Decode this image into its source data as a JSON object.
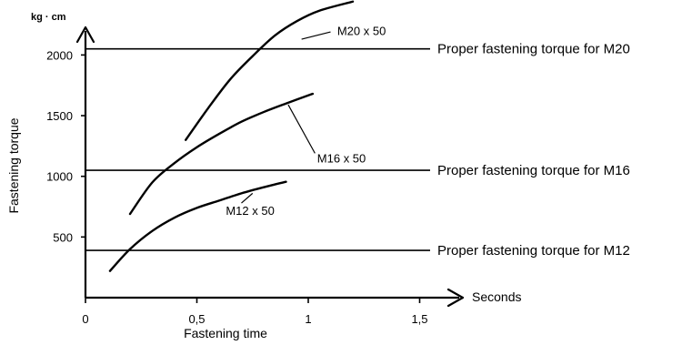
{
  "chart_data": {
    "type": "line",
    "xlabel": "Fastening time",
    "ylabel": "Fastening torque",
    "x_unit": "Seconds",
    "y_unit": "kg · cm",
    "xlim": [
      0,
      1.6
    ],
    "ylim": [
      0,
      2350
    ],
    "x_ticks": [
      {
        "value": 0,
        "label": "0"
      },
      {
        "value": 0.5,
        "label": "0,5"
      },
      {
        "value": 1,
        "label": "1"
      },
      {
        "value": 1.5,
        "label": "1,5"
      }
    ],
    "y_ticks": [
      {
        "value": 500,
        "label": "500"
      },
      {
        "value": 1000,
        "label": "1000"
      },
      {
        "value": 1500,
        "label": "1500"
      },
      {
        "value": 2000,
        "label": "2000"
      }
    ],
    "grid": false,
    "reference_lines": [
      {
        "y": 2050,
        "label": "Proper fastening torque for M20"
      },
      {
        "y": 1050,
        "label": "Proper fastening torque for M16"
      },
      {
        "y": 390,
        "label": "Proper fastening torque for M12"
      }
    ],
    "series": [
      {
        "name": "M20 x 50",
        "label_at": [
          1.13,
          2200
        ],
        "leader_from": [
          0.97,
          2130
        ],
        "leader_to": [
          1.1,
          2190
        ],
        "points": [
          [
            0.45,
            1300
          ],
          [
            0.55,
            1560
          ],
          [
            0.65,
            1800
          ],
          [
            0.75,
            1990
          ],
          [
            0.85,
            2160
          ],
          [
            0.95,
            2280
          ],
          [
            1.05,
            2365
          ],
          [
            1.2,
            2440
          ]
        ]
      },
      {
        "name": "M16 x 50",
        "label_at": [
          1.04,
          1150
        ],
        "leader_from": [
          0.91,
          1590
        ],
        "leader_to": [
          1.03,
          1190
        ],
        "points": [
          [
            0.2,
            690
          ],
          [
            0.3,
            950
          ],
          [
            0.4,
            1110
          ],
          [
            0.5,
            1240
          ],
          [
            0.6,
            1350
          ],
          [
            0.7,
            1450
          ],
          [
            0.8,
            1530
          ],
          [
            0.9,
            1600
          ],
          [
            1.02,
            1680
          ]
        ]
      },
      {
        "name": "M12 x 50",
        "label_at": [
          0.63,
          720
        ],
        "leader_from": [
          0.75,
          860
        ],
        "leader_to": [
          0.7,
          780
        ],
        "points": [
          [
            0.11,
            220
          ],
          [
            0.2,
            400
          ],
          [
            0.3,
            550
          ],
          [
            0.4,
            660
          ],
          [
            0.5,
            740
          ],
          [
            0.6,
            800
          ],
          [
            0.7,
            860
          ],
          [
            0.8,
            910
          ],
          [
            0.9,
            955
          ]
        ]
      }
    ]
  }
}
